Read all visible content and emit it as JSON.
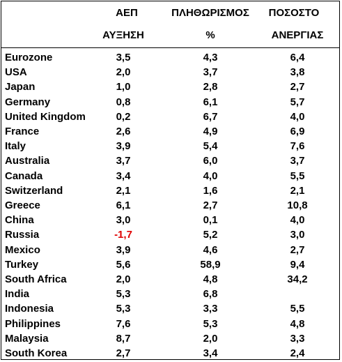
{
  "header": {
    "row1": {
      "gdp": "ΑΕΠ",
      "inflation": "ΠΛΗΘΩΡΙΣΜΟΣ",
      "unemployment": "ΠΟΣΟΣΤΟ"
    },
    "row2": {
      "gdp": "ΑΥΞΗΣΗ",
      "inflation": "%",
      "unemployment": "ΑΝΕΡΓΙΑΣ"
    }
  },
  "colors": {
    "negative": "#e00000",
    "text": "#000000"
  },
  "rows": [
    {
      "country": "Eurozone",
      "gdp": "3,5",
      "inflation": "4,3",
      "unemployment": "6,4"
    },
    {
      "country": "USA",
      "gdp": "2,0",
      "inflation": "3,7",
      "unemployment": "3,8"
    },
    {
      "country": "Japan",
      "gdp": "1,0",
      "inflation": "2,8",
      "unemployment": "2,7"
    },
    {
      "country": "Germany",
      "gdp": "0,8",
      "inflation": "6,1",
      "unemployment": "5,7"
    },
    {
      "country": "United Kingdom",
      "gdp": "0,2",
      "inflation": "6,7",
      "unemployment": "4,0"
    },
    {
      "country": "France",
      "gdp": "2,6",
      "inflation": "4,9",
      "unemployment": "6,9"
    },
    {
      "country": "Italy",
      "gdp": "3,9",
      "inflation": "5,4",
      "unemployment": "7,6"
    },
    {
      "country": "Australia",
      "gdp": "3,7",
      "inflation": "6,0",
      "unemployment": "3,7"
    },
    {
      "country": "Canada",
      "gdp": "3,4",
      "inflation": "4,0",
      "unemployment": "5,5"
    },
    {
      "country": "Switzerland",
      "gdp": "2,1",
      "inflation": "1,6",
      "unemployment": "2,1"
    },
    {
      "country": "Greece",
      "gdp": "6,1",
      "inflation": "2,7",
      "unemployment": "10,8"
    },
    {
      "country": "China",
      "gdp": "3,0",
      "inflation": "0,1",
      "unemployment": "4,0"
    },
    {
      "country": "Russia",
      "gdp": "-1,7",
      "gdp_negative": true,
      "inflation": "5,2",
      "unemployment": "3,0"
    },
    {
      "country": "Mexico",
      "gdp": "3,9",
      "inflation": "4,6",
      "unemployment": "2,7"
    },
    {
      "country": "Turkey",
      "gdp": "5,6",
      "inflation": "58,9",
      "unemployment": "9,4"
    },
    {
      "country": "South Africa",
      "gdp": "2,0",
      "inflation": "4,8",
      "unemployment": "34,2"
    },
    {
      "country": "India",
      "gdp": "5,3",
      "inflation": "6,8",
      "unemployment": ""
    },
    {
      "country": "Indonesia",
      "gdp": "5,3",
      "inflation": "3,3",
      "unemployment": "5,5"
    },
    {
      "country": "Philippines",
      "gdp": "7,6",
      "inflation": "5,3",
      "unemployment": "4,8"
    },
    {
      "country": "Malaysia",
      "gdp": "8,7",
      "inflation": "2,0",
      "unemployment": "3,3"
    },
    {
      "country": "South Korea",
      "gdp": "2,7",
      "inflation": "3,4",
      "unemployment": "2,4"
    }
  ]
}
